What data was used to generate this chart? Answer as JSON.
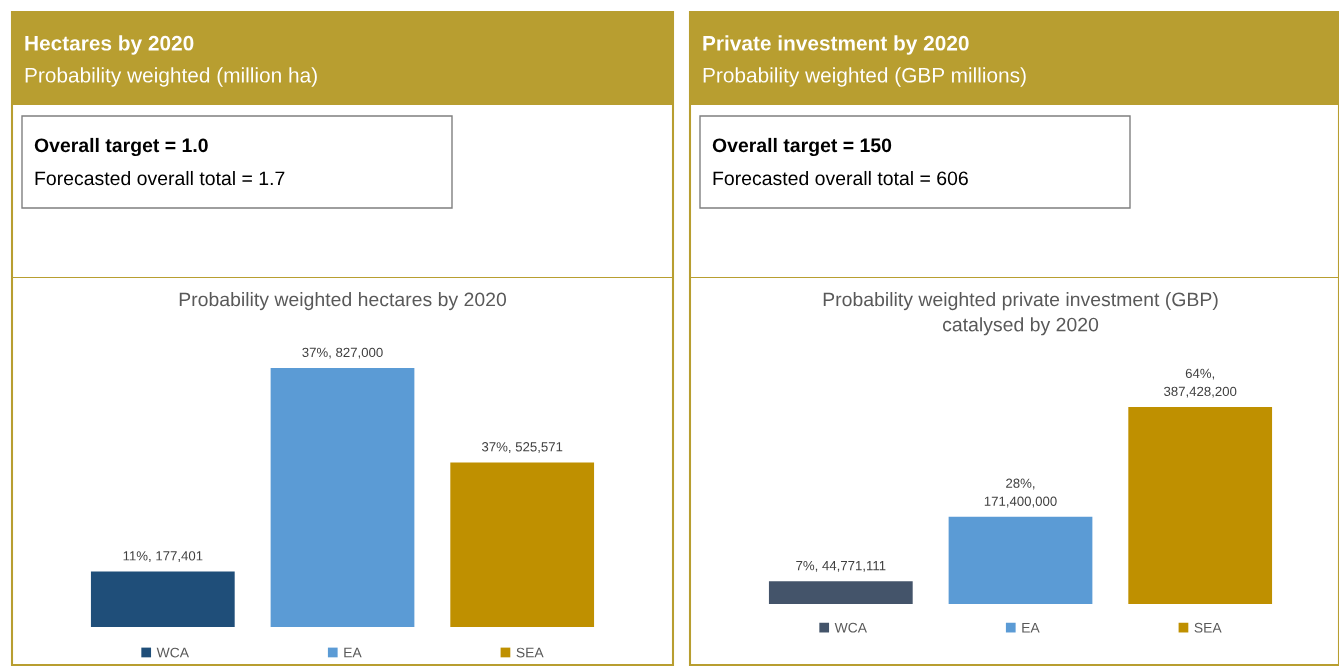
{
  "chart_data": [
    {
      "type": "bar",
      "title": "Hectares by 2020",
      "subtitle": "Probability weighted (million ha)",
      "annotations": [
        "Overall target = 1.0",
        "Forecasted overall total = 1.7",
        "Probability weighted hectares by 2020"
      ],
      "categories": [
        null
      ],
      "legend": "bottom",
      "series": [
        {
          "name": "WCA",
          "color": "#1f4e79",
          "values": [
            177401
          ],
          "value_labels": [
            "11%, 177,401"
          ]
        },
        {
          "name": "EA",
          "color": "#5b9bd5",
          "values": [
            827000
          ],
          "value_labels": [
            "37%, 827,000"
          ]
        },
        {
          "name": "SEA",
          "color": "#bf9000",
          "values": [
            525571
          ],
          "value_labels": [
            "37%, 525,571"
          ]
        }
      ]
    },
    {
      "type": "bar",
      "title": "Private investment by 2020",
      "subtitle": "Probability weighted (GBP millions)",
      "annotations": [
        "Overall target = 150",
        "Forecasted overall total = 606",
        "Probability weighted private investment (GBP)\ncatalysed by 2020"
      ],
      "categories": [
        null
      ],
      "legend": "bottom",
      "series": [
        {
          "name": "WCA",
          "color": "#44546a",
          "values": [
            44771111
          ],
          "value_labels": [
            "7%, 44,771,111"
          ]
        },
        {
          "name": "EA",
          "color": "#5b9bd5",
          "values": [
            171400000
          ],
          "value_labels": [
            "28%,\n171,400,000"
          ]
        },
        {
          "name": "SEA",
          "color": "#bf9000",
          "values": [
            387428200
          ],
          "value_labels": [
            "64%,\n387,428,200"
          ]
        }
      ]
    }
  ]
}
